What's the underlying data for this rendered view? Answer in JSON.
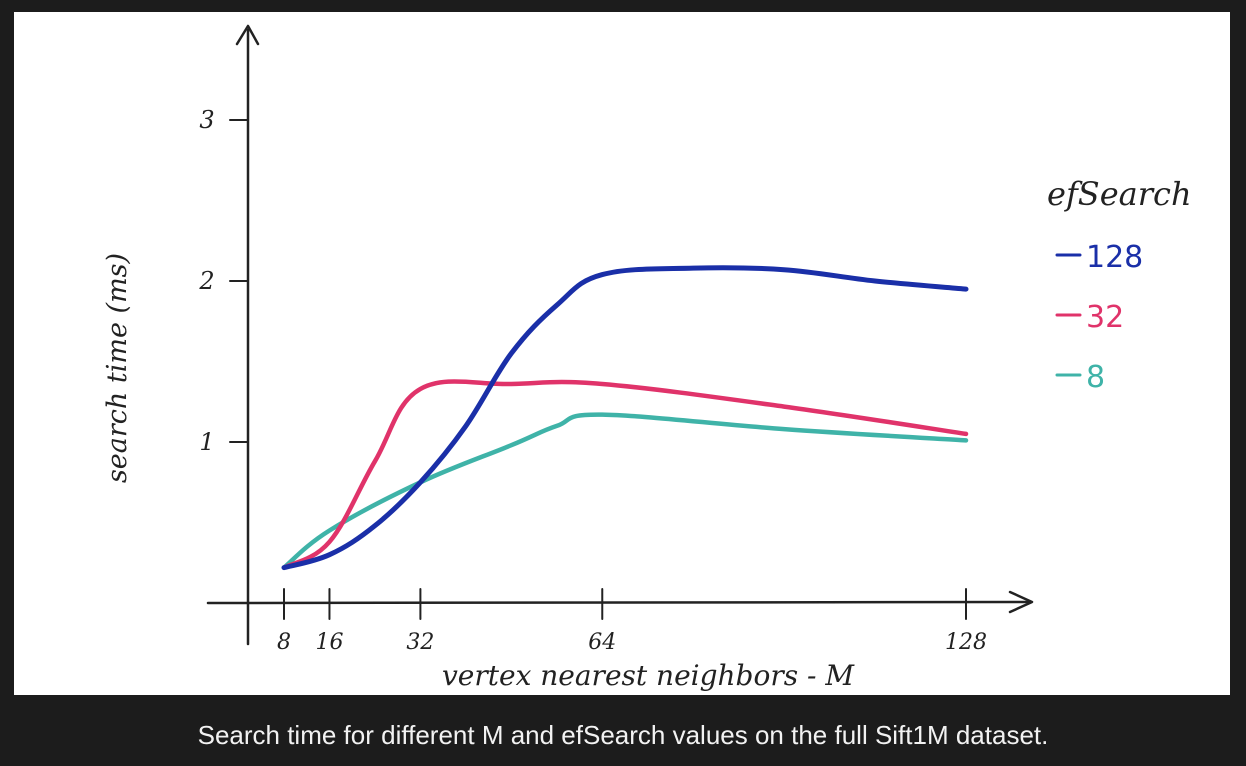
{
  "figure": {
    "caption": "Search time for different M and efSearch values on the full Sift1M dataset."
  },
  "chart_data": {
    "type": "line",
    "title": "",
    "xlabel": "vertex nearest neighbors - M",
    "ylabel": "search time (ms)",
    "x_ticks": [
      8,
      16,
      32,
      64,
      128
    ],
    "y_ticks": [
      1,
      2,
      3
    ],
    "xlim": [
      0,
      140
    ],
    "ylim": [
      0,
      3.5
    ],
    "grid": false,
    "legend": {
      "title": "efSearch",
      "placement": "right"
    },
    "series": [
      {
        "name": "128",
        "color": "#1a2fa8",
        "points": [
          [
            8,
            0.22
          ],
          [
            16,
            0.3
          ],
          [
            24,
            0.48
          ],
          [
            32,
            0.75
          ],
          [
            40,
            1.1
          ],
          [
            48,
            1.55
          ],
          [
            56,
            1.85
          ],
          [
            64,
            2.04
          ],
          [
            80,
            2.08
          ],
          [
            96,
            2.07
          ],
          [
            112,
            2.0
          ],
          [
            128,
            1.95
          ]
        ]
      },
      {
        "name": "32",
        "color": "#e0336a",
        "points": [
          [
            8,
            0.22
          ],
          [
            16,
            0.38
          ],
          [
            24,
            0.88
          ],
          [
            32,
            1.33
          ],
          [
            48,
            1.36
          ],
          [
            64,
            1.36
          ],
          [
            96,
            1.22
          ],
          [
            128,
            1.05
          ]
        ]
      },
      {
        "name": "8",
        "color": "#3fb3a8",
        "points": [
          [
            8,
            0.22
          ],
          [
            16,
            0.45
          ],
          [
            32,
            0.75
          ],
          [
            48,
            0.98
          ],
          [
            56,
            1.1
          ],
          [
            64,
            1.17
          ],
          [
            96,
            1.08
          ],
          [
            128,
            1.01
          ]
        ]
      }
    ]
  }
}
